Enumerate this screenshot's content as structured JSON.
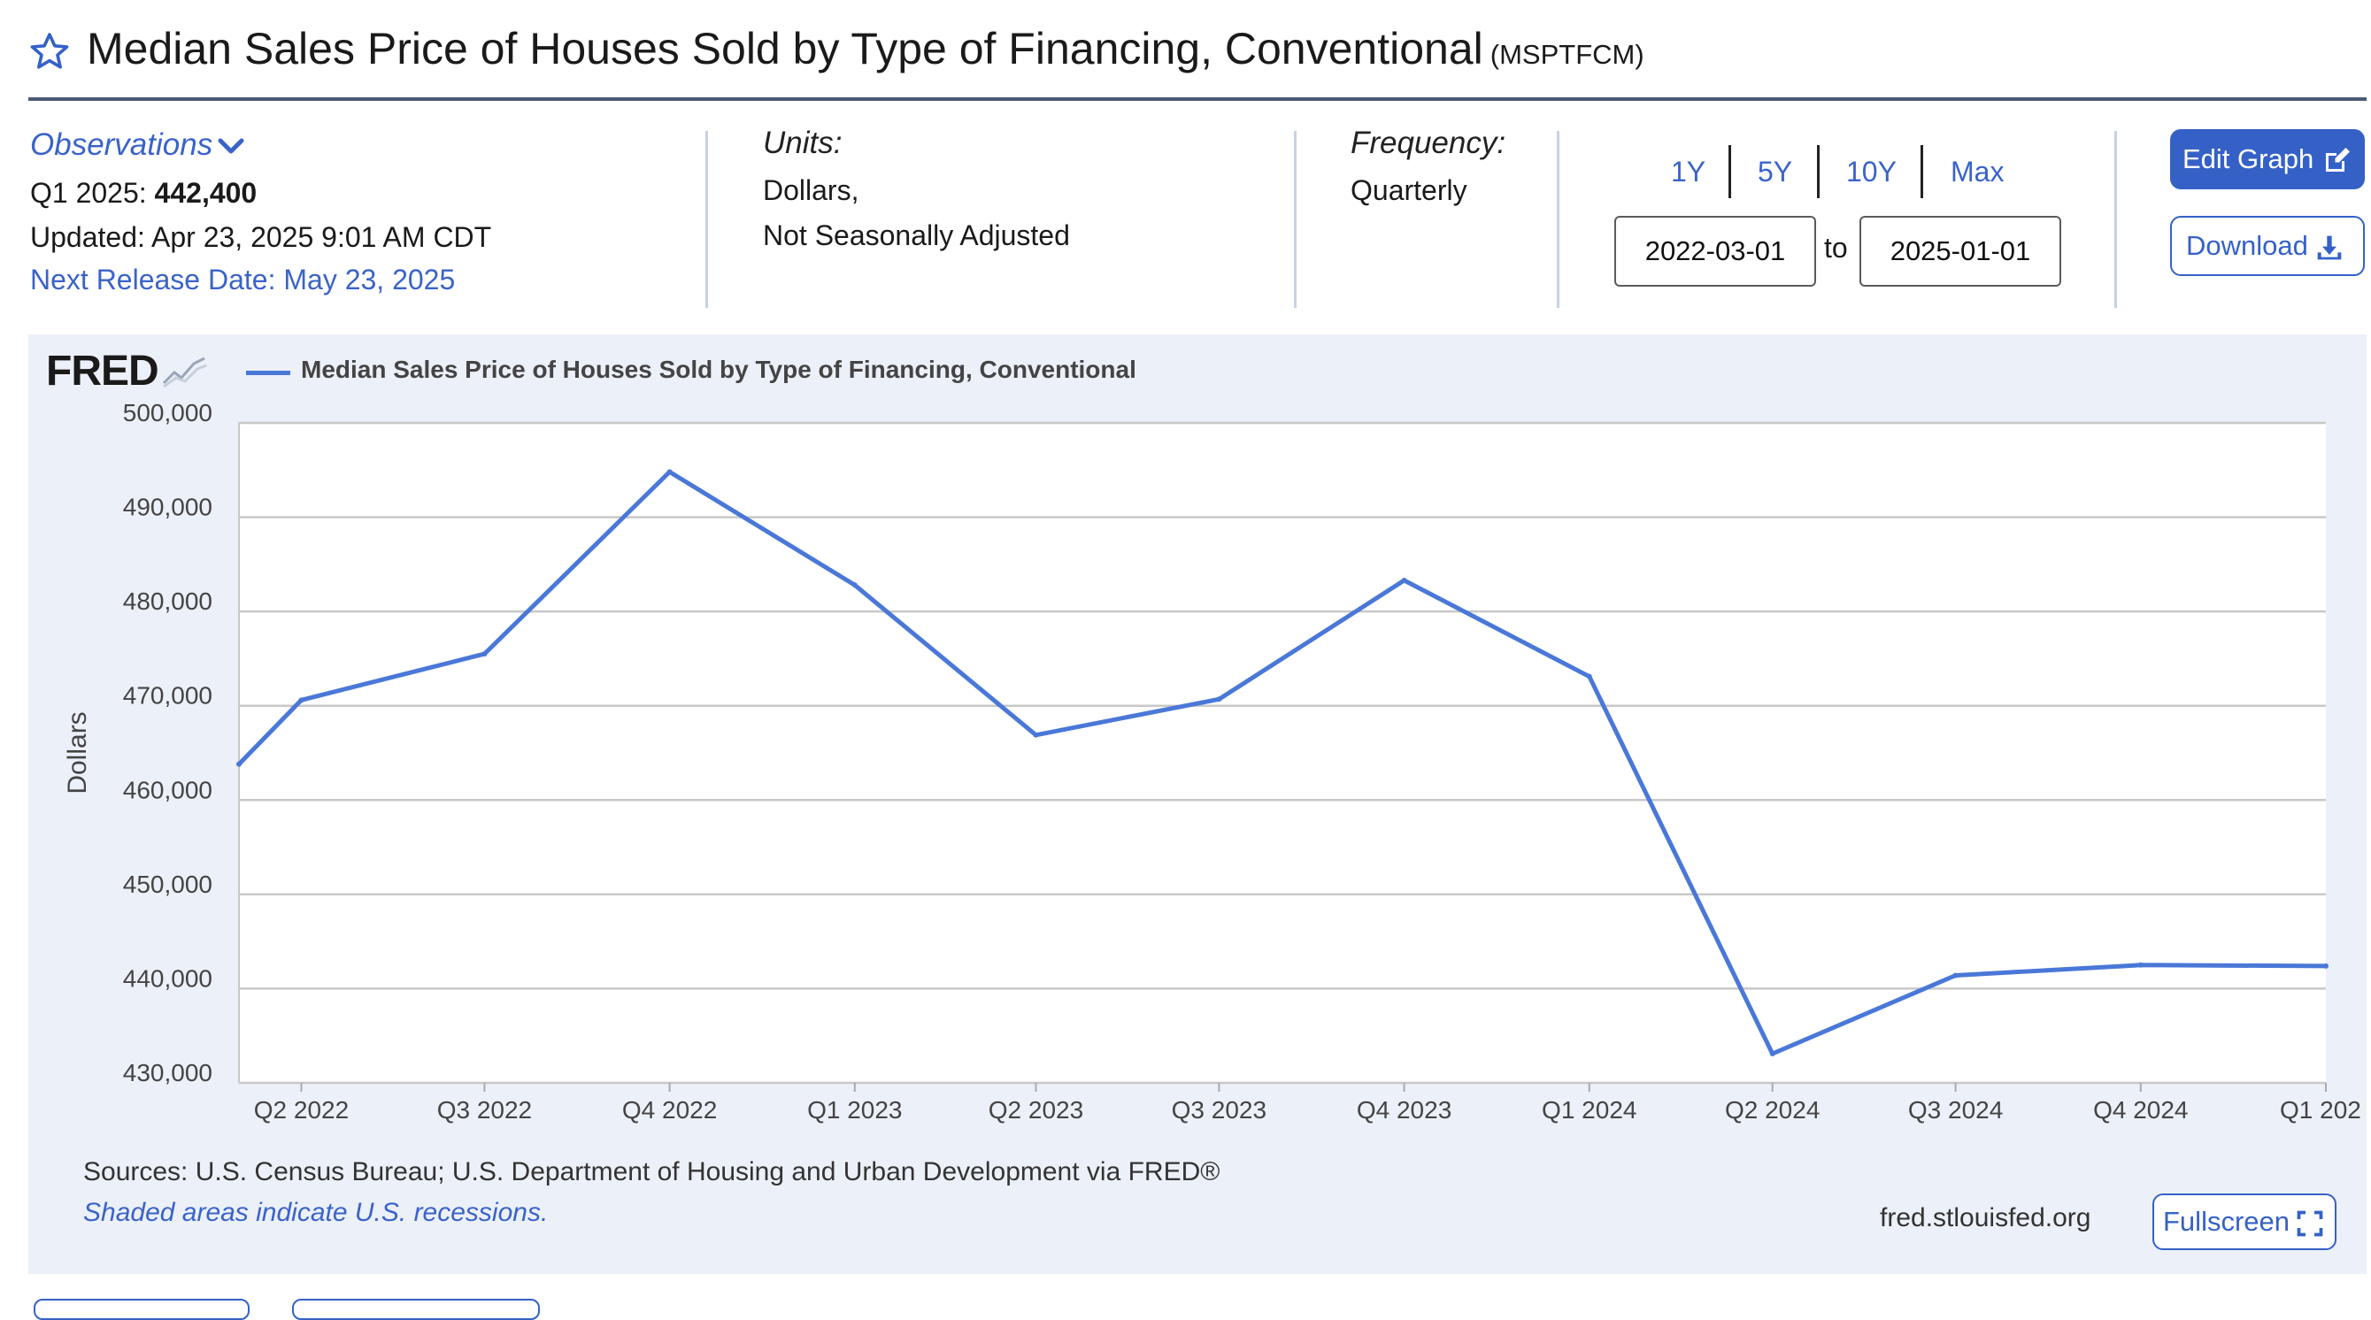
{
  "header": {
    "title": "Median Sales Price of Houses Sold by Type of Financing, Conventional",
    "series_code": "(MSPTFCM)"
  },
  "observations": {
    "label": "Observations",
    "period": "Q1 2025:",
    "value": "442,400",
    "updated": "Updated: Apr 23, 2025 9:01 AM CDT",
    "next_release": "Next Release Date: May 23, 2025"
  },
  "units": {
    "label": "Units:",
    "line1": "Dollars,",
    "line2": "Not Seasonally Adjusted"
  },
  "frequency": {
    "label": "Frequency:",
    "value": "Quarterly"
  },
  "range": {
    "buttons": [
      "1Y",
      "5Y",
      "10Y",
      "Max"
    ],
    "start": "2022-03-01",
    "to_label": "to",
    "end": "2025-01-01"
  },
  "actions": {
    "edit_graph": "Edit Graph",
    "download": "Download",
    "fullscreen": "Fullscreen"
  },
  "chart_footer": {
    "logo": "FRED",
    "sources": "Sources: U.S. Census Bureau; U.S. Department of Housing and Urban Development via FRED®",
    "shaded_note": "Shaded areas indicate U.S. recessions.",
    "site": "fred.stlouisfed.org"
  },
  "colors": {
    "accent": "#3561c7",
    "series": "#4a78d8",
    "panel": "#ecf0f8"
  },
  "chart_data": {
    "type": "line",
    "title": "",
    "legend": "Median Sales Price of Houses Sold by Type of Financing, Conventional",
    "ylabel": "Dollars",
    "xlabel": "",
    "ylim": [
      430000,
      500000
    ],
    "yticks": [
      "500,000",
      "490,000",
      "480,000",
      "470,000",
      "460,000",
      "450,000",
      "440,000",
      "430,000"
    ],
    "xticks": [
      "Q2 2022",
      "Q3 2022",
      "Q4 2022",
      "Q1 2023",
      "Q2 2023",
      "Q3 2023",
      "Q4 2023",
      "Q1 2024",
      "Q2 2024",
      "Q3 2024",
      "Q4 2024",
      "Q1 202"
    ],
    "grid": true,
    "series": [
      {
        "name": "Median Sales Price of Houses Sold by Type of Financing, Conventional",
        "x": [
          "2022-03-01",
          "2022-04-01",
          "2022-07-01",
          "2022-10-01",
          "2023-01-01",
          "2023-04-01",
          "2023-07-01",
          "2023-10-01",
          "2024-01-01",
          "2024-04-01",
          "2024-07-01",
          "2024-10-01",
          "2025-01-01"
        ],
        "values": [
          463800,
          470600,
          475500,
          494800,
          482800,
          466900,
          470700,
          483300,
          473100,
          433100,
          441400,
          442500,
          442400
        ]
      }
    ]
  }
}
